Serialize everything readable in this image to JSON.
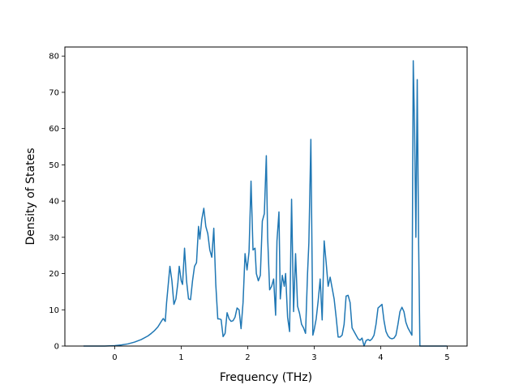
{
  "chart_data": {
    "type": "line",
    "title": "",
    "xlabel": "Frequency (THz)",
    "ylabel": "Density of States",
    "xlim": [
      -0.75,
      5.3
    ],
    "ylim": [
      0,
      82.5
    ],
    "xticks": [
      0,
      1,
      2,
      3,
      4,
      5
    ],
    "yticks": [
      0,
      10,
      20,
      30,
      40,
      50,
      60,
      70,
      80
    ],
    "grid": false,
    "legend": "none",
    "series": [
      {
        "color": "#1f77b4",
        "x": [
          -0.47,
          -0.3,
          -0.15,
          0.0,
          0.1,
          0.2,
          0.3,
          0.4,
          0.5,
          0.55,
          0.6,
          0.65,
          0.7,
          0.73,
          0.76,
          0.78,
          0.8,
          0.83,
          0.86,
          0.89,
          0.92,
          0.95,
          0.97,
          1.0,
          1.02,
          1.05,
          1.08,
          1.11,
          1.14,
          1.17,
          1.2,
          1.23,
          1.26,
          1.28,
          1.31,
          1.34,
          1.37,
          1.4,
          1.43,
          1.46,
          1.49,
          1.52,
          1.55,
          1.57,
          1.6,
          1.63,
          1.66,
          1.69,
          1.72,
          1.75,
          1.78,
          1.81,
          1.84,
          1.87,
          1.9,
          1.93,
          1.96,
          1.99,
          2.02,
          2.05,
          2.08,
          2.11,
          2.13,
          2.16,
          2.19,
          2.22,
          2.25,
          2.28,
          2.3,
          2.33,
          2.36,
          2.39,
          2.42,
          2.44,
          2.47,
          2.49,
          2.52,
          2.55,
          2.57,
          2.6,
          2.63,
          2.66,
          2.69,
          2.72,
          2.75,
          2.78,
          2.81,
          2.84,
          2.87,
          2.9,
          2.92,
          2.95,
          2.98,
          3.0,
          3.03,
          3.06,
          3.09,
          3.12,
          3.15,
          3.18,
          3.21,
          3.24,
          3.27,
          3.3,
          3.33,
          3.36,
          3.39,
          3.42,
          3.45,
          3.48,
          3.51,
          3.54,
          3.57,
          3.6,
          3.63,
          3.66,
          3.69,
          3.72,
          3.75,
          3.78,
          3.81,
          3.84,
          3.87,
          3.9,
          3.93,
          3.96,
          3.99,
          4.02,
          4.05,
          4.08,
          4.11,
          4.14,
          4.17,
          4.2,
          4.23,
          4.26,
          4.29,
          4.32,
          4.35,
          4.38,
          4.41,
          4.44,
          4.47,
          4.49,
          4.51,
          4.53,
          4.55,
          4.57,
          4.59,
          4.7,
          5.0
        ],
        "y": [
          0,
          0,
          0,
          0.1,
          0.3,
          0.6,
          1.1,
          1.8,
          2.8,
          3.5,
          4.3,
          5.3,
          6.8,
          7.6,
          6.8,
          12.0,
          16.0,
          22.0,
          18.0,
          11.5,
          13.0,
          17.5,
          22.0,
          18.0,
          17.0,
          27.0,
          18.0,
          13.0,
          12.8,
          18.0,
          22.0,
          23.0,
          33.0,
          29.5,
          35.0,
          38.0,
          33.0,
          31.0,
          26.5,
          24.5,
          32.5,
          17.0,
          7.5,
          7.5,
          7.3,
          2.6,
          3.5,
          9.2,
          7.5,
          6.8,
          7.0,
          8.0,
          10.5,
          10.0,
          4.8,
          12.0,
          25.5,
          21.0,
          26.0,
          45.5,
          26.5,
          27.0,
          20.0,
          18.0,
          19.5,
          34.5,
          36.5,
          52.5,
          30.0,
          15.5,
          16.5,
          18.5,
          8.5,
          29.0,
          37.0,
          13.0,
          19.5,
          16.5,
          20.0,
          8.0,
          4.0,
          40.5,
          9.5,
          25.5,
          11.0,
          9.0,
          6.0,
          5.0,
          3.5,
          20.0,
          28.5,
          57.0,
          3.0,
          4.5,
          7.5,
          12.5,
          18.5,
          7.2,
          29.0,
          23.0,
          16.5,
          19.0,
          16.0,
          13.0,
          8.0,
          2.5,
          2.5,
          3.0,
          6.0,
          13.8,
          14.0,
          12.0,
          5.0,
          4.0,
          3.0,
          2.0,
          1.6,
          2.2,
          0.0,
          1.5,
          1.8,
          1.5,
          2.0,
          3.0,
          6.0,
          10.5,
          11.0,
          11.5,
          7.0,
          4.0,
          2.8,
          2.2,
          2.0,
          2.2,
          3.0,
          6.0,
          9.5,
          10.7,
          9.5,
          6.5,
          5.0,
          4.0,
          3.0,
          78.7,
          60.0,
          30.0,
          73.5,
          30.0,
          0.0,
          0.0,
          0.0
        ]
      }
    ]
  }
}
